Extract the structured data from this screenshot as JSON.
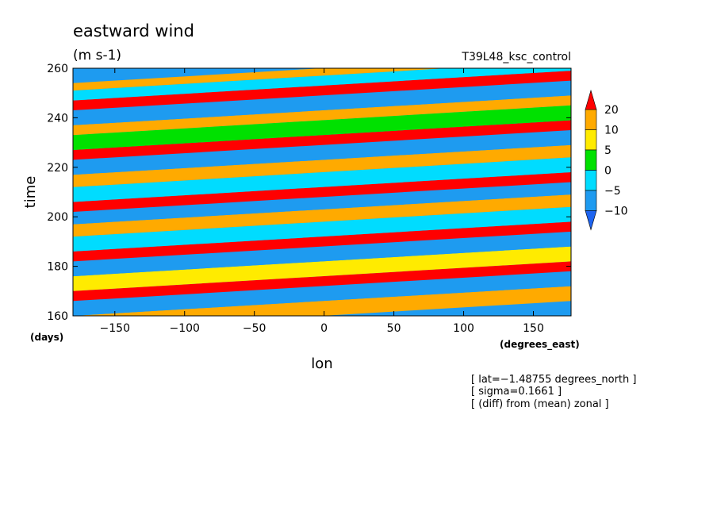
{
  "chart_data": {
    "type": "heatmap",
    "title": "eastward wind",
    "units": "(m s-1)",
    "run_label": "T39L48_ksc_control",
    "xlabel": "lon",
    "ylabel": "time",
    "x_units": "(degrees_east)",
    "y_units": "(days)",
    "xlim": [
      -180,
      177
    ],
    "ylim": [
      160,
      260
    ],
    "x_ticks": [
      -150,
      -100,
      -50,
      0,
      50,
      100,
      150
    ],
    "x_tick_labels": [
      "−150",
      "−100",
      "−50",
      "0",
      "50",
      "100",
      "150"
    ],
    "y_ticks": [
      160,
      180,
      200,
      220,
      240,
      260
    ],
    "y_tick_labels": [
      "160",
      "180",
      "200",
      "220",
      "240",
      "260"
    ],
    "colorbar": {
      "levels": [
        -10,
        -5,
        0,
        5,
        10,
        20
      ],
      "level_labels": [
        "−10",
        "−5",
        "0",
        "5",
        "10",
        "20"
      ],
      "colors": [
        "#1e64f0",
        "#1e9bf0",
        "#00dcff",
        "#00e100",
        "#ffeb00",
        "#ffaa00",
        "#ff0000"
      ],
      "extend": "both"
    },
    "bands": [
      {
        "t0": 160,
        "t1": 166,
        "value": 10
      },
      {
        "t0": 166,
        "t1": 172,
        "value": -10
      },
      {
        "t0": 172,
        "t1": 176,
        "value": 20
      },
      {
        "t0": 176,
        "t1": 182,
        "value": 5
      },
      {
        "t0": 182,
        "t1": 188,
        "value": -10
      },
      {
        "t0": 188,
        "t1": 192,
        "value": 20
      },
      {
        "t0": 192,
        "t1": 198,
        "value": -5
      },
      {
        "t0": 198,
        "t1": 203,
        "value": 10
      },
      {
        "t0": 203,
        "t1": 208,
        "value": -10
      },
      {
        "t0": 208,
        "t1": 212,
        "value": 20
      },
      {
        "t0": 212,
        "t1": 218,
        "value": -5
      },
      {
        "t0": 218,
        "t1": 223,
        "value": 10
      },
      {
        "t0": 223,
        "t1": 229,
        "value": -10
      },
      {
        "t0": 229,
        "t1": 233,
        "value": 20
      },
      {
        "t0": 233,
        "t1": 239,
        "value": 0
      },
      {
        "t0": 239,
        "t1": 243,
        "value": 10
      },
      {
        "t0": 243,
        "t1": 249,
        "value": -10
      },
      {
        "t0": 249,
        "t1": 253,
        "value": 20
      },
      {
        "t0": 253,
        "t1": 257,
        "value": -5
      },
      {
        "t0": 257,
        "t1": 260,
        "value": 10
      }
    ],
    "band_tilt_days_per_360deg": 12
  },
  "annotations": {
    "lat": "[ lat=−1.48755 degrees_north ]",
    "sigma": "[ sigma=0.1661 ]",
    "diff": "[ (diff) from (mean) zonal ]"
  }
}
